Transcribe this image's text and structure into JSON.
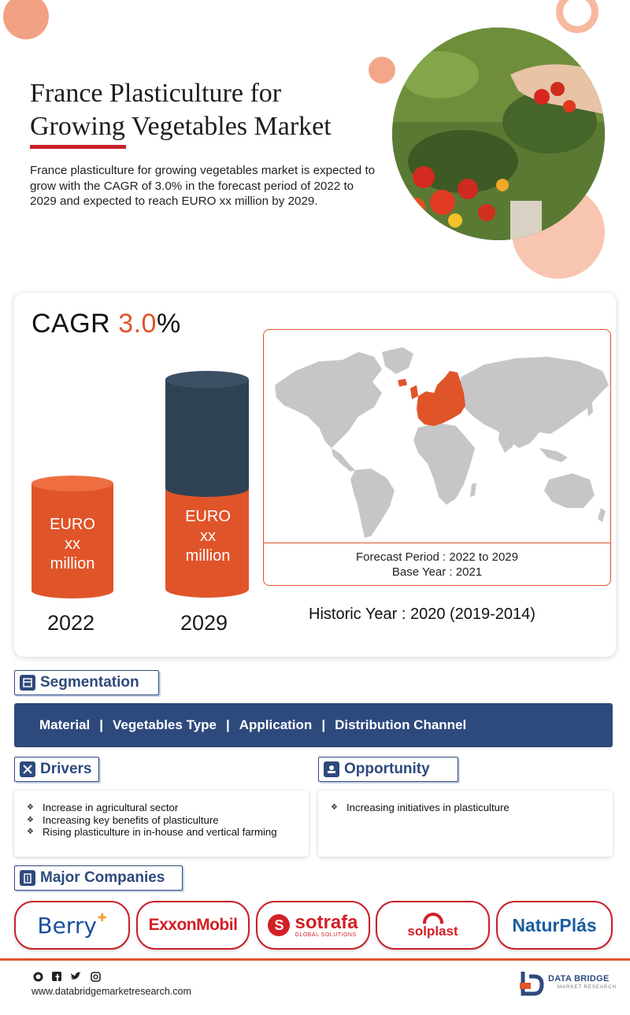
{
  "header": {
    "title_line1": "France Plasticulture for",
    "title_line2": "Growing Vegetables Market",
    "description": "France plasticulture for growing vegetables market is expected to grow with the CAGR of 3.0% in the forecast period of 2022 to 2029  and expected to reach EURO xx million by 2029."
  },
  "cagr": {
    "prefix": "CAGR ",
    "value": "3.0",
    "suffix": "%"
  },
  "bars": [
    {
      "year": "2022",
      "line1": "EURO",
      "line2": "xx",
      "line3": "million"
    },
    {
      "year": "2029",
      "line1": "EURO",
      "line2": "xx",
      "line3": "million"
    }
  ],
  "periods": {
    "forecast": "Forecast Period : 2022 to 2029",
    "base": "Base Year : 2021",
    "historic": "Historic Year : 2020 (2019-2014)"
  },
  "segmentation": {
    "heading": "Segmentation",
    "items": [
      "Material",
      "Vegetables Type",
      "Application",
      "Distribution Channel"
    ],
    "separator": "|"
  },
  "drivers": {
    "heading": "Drivers",
    "items": [
      "Increase in agricultural sector",
      "Increasing key benefits of plasticulture",
      "Rising plasticulture in in-house and vertical farming"
    ]
  },
  "opportunity": {
    "heading": "Opportunity",
    "items": [
      "Increasing initiatives in plasticulture"
    ]
  },
  "companies": {
    "heading": "Major Companies",
    "logos": [
      "Berry",
      "ExxonMobil",
      "sotrafa",
      "GLOBAL SOLUTIONS",
      "solplast",
      "NaturPlás"
    ]
  },
  "footer": {
    "website": "www.databridgemarketresearch.com",
    "brand": "DATA BRIDGE",
    "brand_sub": "MARKET RESEARCH"
  },
  "colors": {
    "accent": "#e0542a",
    "navy": "#2e4a7d",
    "red": "#c9202a",
    "peach": "#f6b9a0",
    "dark_cylinder": "#2f4253"
  }
}
